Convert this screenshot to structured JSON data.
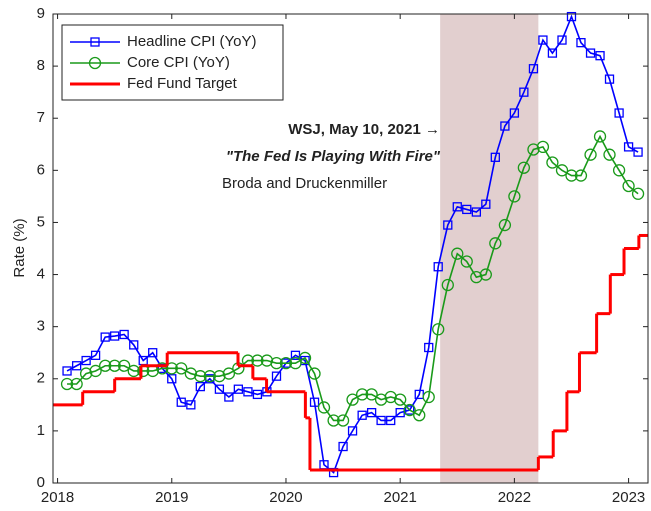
{
  "chart_data": {
    "type": "line",
    "ylabel": "Rate (%)",
    "xlim": [
      2017.96,
      2023.17
    ],
    "xticks": [
      2018,
      2019,
      2020,
      2021,
      2022,
      2023
    ],
    "ylim": [
      0,
      9
    ],
    "yticks": [
      0,
      1,
      2,
      3,
      4,
      5,
      6,
      7,
      8,
      9
    ],
    "legend": "upper left",
    "highlight": {
      "x": [
        2021.35,
        2022.21
      ],
      "color": "#e2cfcf"
    },
    "annotations": [
      "WSJ, May 10, 2021 →",
      "\"The Fed Is Playing With Fire\"",
      "Broda and Druckenmiller"
    ],
    "x": [
      2018.083,
      2018.167,
      2018.25,
      2018.333,
      2018.417,
      2018.5,
      2018.583,
      2018.667,
      2018.75,
      2018.833,
      2018.917,
      2019,
      2019.083,
      2019.167,
      2019.25,
      2019.333,
      2019.417,
      2019.5,
      2019.583,
      2019.667,
      2019.75,
      2019.833,
      2019.917,
      2020,
      2020.083,
      2020.167,
      2020.25,
      2020.333,
      2020.417,
      2020.5,
      2020.583,
      2020.667,
      2020.75,
      2020.833,
      2020.917,
      2021,
      2021.083,
      2021.167,
      2021.25,
      2021.333,
      2021.417,
      2021.5,
      2021.583,
      2021.667,
      2021.75,
      2021.833,
      2021.917,
      2022,
      2022.083,
      2022.167,
      2022.25,
      2022.333,
      2022.417,
      2022.5,
      2022.583,
      2022.667,
      2022.75,
      2022.833,
      2022.917,
      2023,
      2023.083
    ],
    "series": [
      {
        "name": "Headline CPI (YoY)",
        "color": "#0000ff",
        "marker": "square",
        "values": [
          2.15,
          2.25,
          2.35,
          2.45,
          2.8,
          2.82,
          2.85,
          2.65,
          2.35,
          2.5,
          2.2,
          2.0,
          1.55,
          1.5,
          1.85,
          2.0,
          1.8,
          1.65,
          1.8,
          1.75,
          1.7,
          1.75,
          2.05,
          2.3,
          2.45,
          2.35,
          1.55,
          0.35,
          0.2,
          0.7,
          1.0,
          1.3,
          1.35,
          1.2,
          1.2,
          1.35,
          1.4,
          1.7,
          2.6,
          4.15,
          4.95,
          5.3,
          5.25,
          5.2,
          5.35,
          6.25,
          6.85,
          7.1,
          7.5,
          7.95,
          8.5,
          8.25,
          8.5,
          8.95,
          8.45,
          8.25,
          8.2,
          7.75,
          7.1,
          6.45,
          6.35
        ]
      },
      {
        "name": "Core CPI (YoY)",
        "color": "#1a9a1a",
        "marker": "circle",
        "values": [
          1.9,
          1.9,
          2.1,
          2.15,
          2.25,
          2.25,
          2.25,
          2.15,
          2.15,
          2.15,
          2.2,
          2.2,
          2.2,
          2.1,
          2.05,
          2.05,
          2.05,
          2.1,
          2.2,
          2.35,
          2.35,
          2.35,
          2.3,
          2.3,
          2.3,
          2.4,
          2.1,
          1.45,
          1.2,
          1.2,
          1.6,
          1.7,
          1.7,
          1.6,
          1.65,
          1.6,
          1.4,
          1.3,
          1.65,
          2.95,
          3.8,
          4.4,
          4.25,
          3.95,
          4.0,
          4.6,
          4.95,
          5.5,
          6.05,
          6.4,
          6.45,
          6.15,
          6.0,
          5.9,
          5.9,
          6.3,
          6.65,
          6.3,
          6.0,
          5.7,
          5.55
        ]
      },
      {
        "name": "Fed Fund Target",
        "color": "#ff0000",
        "marker": "step",
        "x": [
          2017.96,
          2018.22,
          2018.5,
          2018.73,
          2018.96,
          2019.58,
          2019.71,
          2019.83,
          2020.17,
          2020.21,
          2022.21,
          2022.34,
          2022.46,
          2022.57,
          2022.72,
          2022.84,
          2022.96,
          2023.09
        ],
        "values": [
          1.5,
          1.75,
          2.0,
          2.25,
          2.5,
          2.25,
          2.0,
          1.75,
          1.25,
          0.25,
          0.5,
          1.0,
          1.75,
          2.5,
          3.25,
          4.0,
          4.5,
          4.75
        ]
      }
    ]
  }
}
